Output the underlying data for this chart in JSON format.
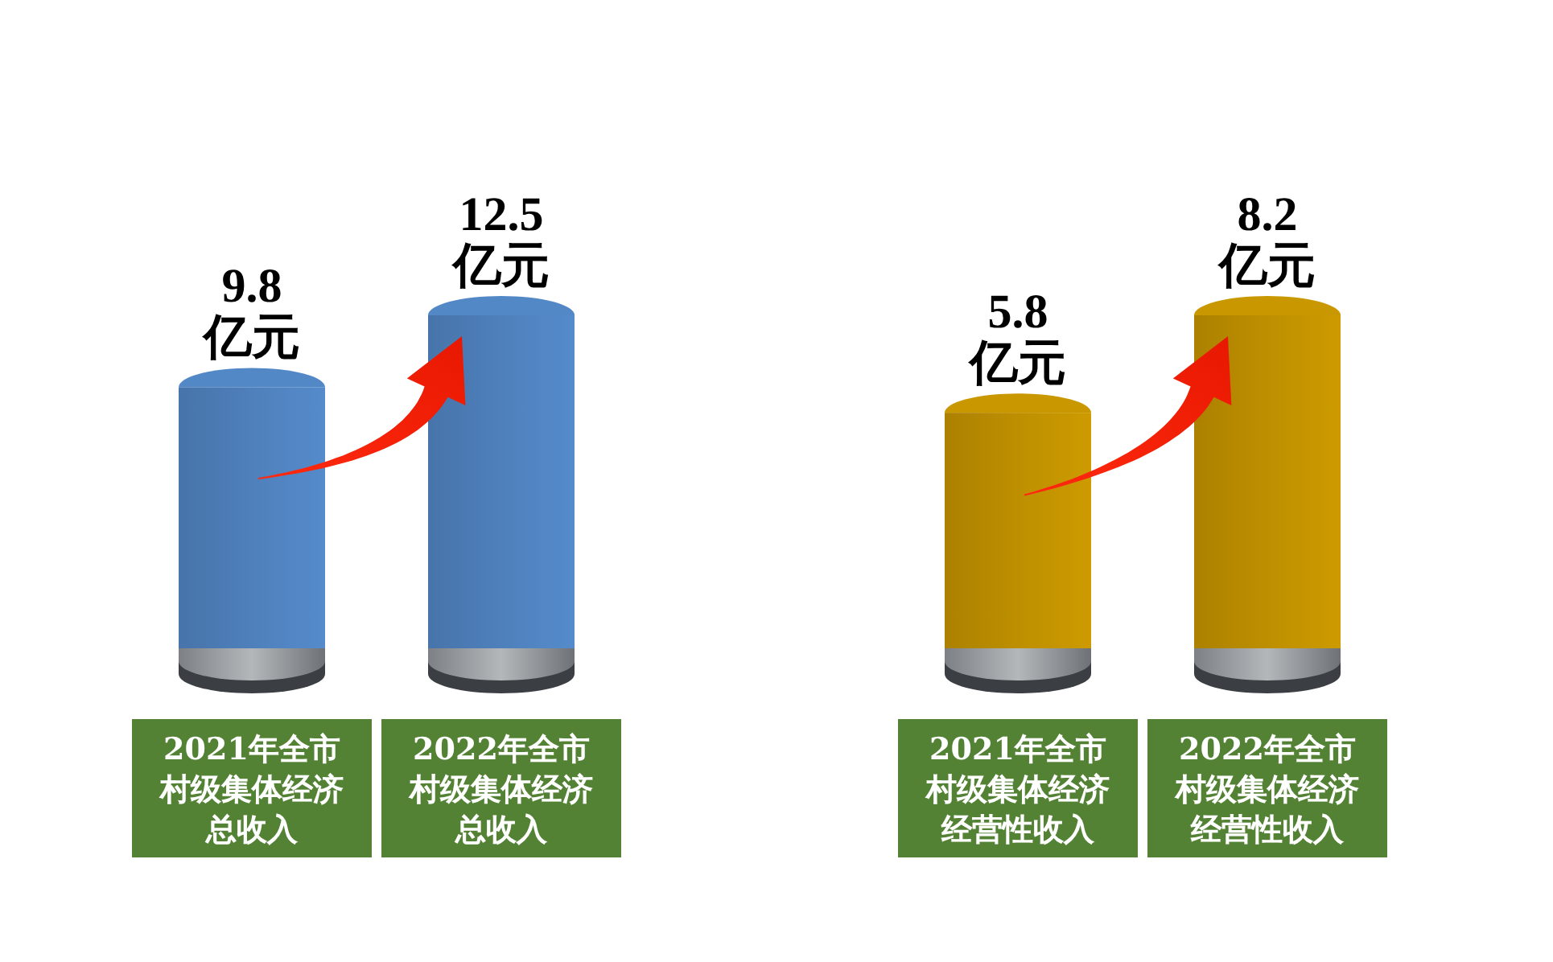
{
  "chart_data": [
    {
      "type": "bar",
      "categories": [
        "2021年全市村级集体经济总收入",
        "2022年全市村级集体经济总收入"
      ],
      "values": [
        9.8,
        12.5
      ],
      "color": "#4f81bd",
      "value_labels": [
        "9.8\n亿元",
        "12.5\n亿元"
      ]
    },
    {
      "type": "bar",
      "categories": [
        "2021年全市村级集体经济经营性收入",
        "2022年全市村级集体经济经营性收入"
      ],
      "values": [
        5.8,
        8.2
      ],
      "color": "#bf9000",
      "value_labels": [
        "5.8\n亿元",
        "8.2\n亿元"
      ]
    }
  ]
}
